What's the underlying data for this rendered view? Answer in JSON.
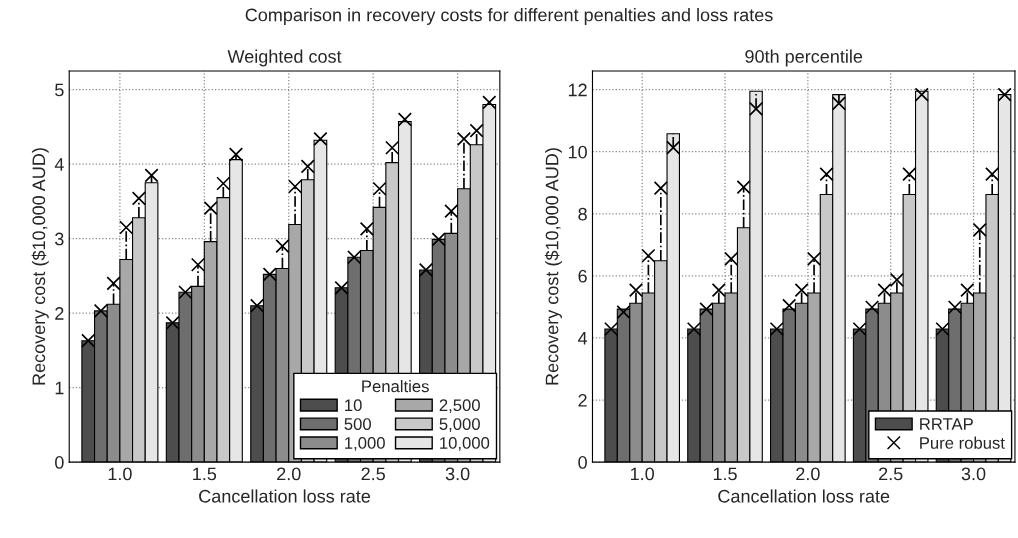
{
  "chart_data": [
    {
      "type": "bar",
      "title": "Weighted cost",
      "xlabel": "Cancellation loss rate",
      "ylabel": "Recovery cost ($10,000 AUD)",
      "annotations": [
        "Comparison in recovery costs for different penalties and loss rates"
      ],
      "x": [
        1.0,
        1.5,
        2.0,
        2.5,
        3.0
      ],
      "xlim": [
        0.7,
        3.25
      ],
      "xticks": [
        {
          "value": 1.0,
          "label": "1.0"
        },
        {
          "value": 1.5,
          "label": "1.5"
        },
        {
          "value": 2.0,
          "label": "2.0"
        },
        {
          "value": 2.5,
          "label": "2.5"
        },
        {
          "value": 3.0,
          "label": "3.0"
        }
      ],
      "ylim": [
        0,
        5.25
      ],
      "yticks": [
        0,
        1,
        2,
        3,
        4,
        5
      ],
      "grid": true,
      "legend": "bottom right",
      "legend_title": "Penalties",
      "series": [
        {
          "name": "10",
          "color": "#4d4d4d",
          "values": [
            1.63,
            1.87,
            2.1,
            2.34,
            2.58
          ]
        },
        {
          "name": "500",
          "color": "#6e6e6e",
          "values": [
            2.03,
            2.28,
            2.52,
            2.75,
            2.99
          ]
        },
        {
          "name": "1,000",
          "color": "#8c8c8c",
          "values": [
            2.12,
            2.36,
            2.6,
            2.84,
            3.07
          ]
        },
        {
          "name": "2,500",
          "color": "#a8a8a8",
          "values": [
            2.72,
            2.96,
            3.19,
            3.42,
            3.67
          ]
        },
        {
          "name": "5,000",
          "color": "#c8c8c8",
          "values": [
            3.28,
            3.55,
            3.79,
            4.02,
            4.26
          ]
        },
        {
          "name": "10,000",
          "color": "#e6e6e6",
          "values": [
            3.75,
            4.06,
            4.32,
            4.57,
            4.8
          ]
        },
        {
          "type": "scatter",
          "marker": "cross",
          "color": "#000000",
          "x": [
            0.8125,
            1.3125,
            1.8125,
            2.3125,
            2.8125
          ],
          "values": [
            1.63,
            1.87,
            2.1,
            2.34,
            2.58
          ]
        },
        {
          "type": "scatter",
          "marker": "cross",
          "color": "#000000",
          "x": [
            0.8875,
            1.3875,
            1.8875,
            2.3875,
            2.8875
          ],
          "values": [
            2.03,
            2.28,
            2.52,
            2.75,
            2.99
          ]
        },
        {
          "type": "scatter",
          "marker": "cross",
          "color": "#000000",
          "x": [
            0.9625,
            1.4625,
            1.9625,
            2.4625,
            2.9625
          ],
          "values": [
            2.4,
            2.65,
            2.9,
            3.13,
            3.37
          ],
          "errors": [
            [
              2.12,
              2.4
            ],
            [
              2.36,
              2.65
            ],
            [
              2.6,
              2.9
            ],
            [
              2.84,
              3.13
            ],
            [
              3.07,
              3.37
            ]
          ]
        },
        {
          "type": "scatter",
          "marker": "cross",
          "color": "#000000",
          "x": [
            1.0375,
            1.5375,
            2.0375,
            2.5375,
            3.0375
          ],
          "values": [
            3.15,
            3.41,
            3.7,
            3.67,
            4.34
          ],
          "errors": [
            [
              2.72,
              3.15
            ],
            [
              2.96,
              3.41
            ],
            [
              3.19,
              3.7
            ],
            [
              3.42,
              3.67
            ],
            [
              3.67,
              4.34
            ]
          ]
        },
        {
          "type": "scatter",
          "marker": "cross",
          "color": "#000000",
          "x": [
            1.1125,
            1.6125,
            2.1125,
            2.6125,
            3.1125
          ],
          "values": [
            3.54,
            3.74,
            3.97,
            4.22,
            4.45
          ],
          "errors": [
            [
              3.28,
              3.54
            ],
            [
              3.55,
              3.74
            ],
            [
              3.79,
              3.97
            ],
            [
              4.02,
              4.22
            ],
            [
              4.26,
              4.45
            ]
          ]
        },
        {
          "type": "scatter",
          "marker": "cross",
          "color": "#000000",
          "x": [
            1.1875,
            1.6875,
            2.1875,
            2.6875,
            3.1875
          ],
          "values": [
            3.85,
            4.13,
            4.34,
            4.6,
            4.83
          ],
          "errors": [
            [
              3.75,
              3.85
            ],
            [
              4.06,
              4.13
            ],
            null,
            null,
            null
          ]
        }
      ]
    },
    {
      "type": "bar",
      "title": "90th percentile",
      "xlabel": "Cancellation loss rate",
      "ylabel": "Recovery cost ($10,000 AUD)",
      "x": [
        1.0,
        1.5,
        2.0,
        2.5,
        3.0
      ],
      "xlim": [
        0.7,
        3.25
      ],
      "xticks": [
        {
          "value": 1.0,
          "label": "1.0"
        },
        {
          "value": 1.5,
          "label": "1.5"
        },
        {
          "value": 2.0,
          "label": "2.0"
        },
        {
          "value": 2.5,
          "label": "2.5"
        },
        {
          "value": 3.0,
          "label": "3.0"
        }
      ],
      "ylim": [
        0,
        12.6
      ],
      "yticks": [
        0,
        2,
        4,
        6,
        8,
        10,
        12
      ],
      "grid": true,
      "legend": "bottom right",
      "series": [
        {
          "name": "RRTAP",
          "color": "#4d4d4d",
          "values": [
            4.29,
            4.29,
            4.29,
            4.29,
            4.29
          ]
        },
        {
          "color": "#6e6e6e",
          "values": [
            4.93,
            4.93,
            4.93,
            4.93,
            4.93
          ]
        },
        {
          "color": "#8c8c8c",
          "values": [
            5.12,
            5.12,
            5.12,
            5.12,
            5.12
          ]
        },
        {
          "color": "#a8a8a8",
          "values": [
            5.45,
            5.45,
            5.45,
            5.45,
            5.45
          ]
        },
        {
          "color": "#c8c8c8",
          "values": [
            6.49,
            7.55,
            8.62,
            8.62,
            8.62
          ]
        },
        {
          "color": "#e6e6e6",
          "values": [
            10.58,
            11.95,
            11.84,
            11.95,
            11.84
          ]
        },
        {
          "type": "scatter",
          "name": "Pure robust",
          "marker": "cross",
          "color": "#000000",
          "x": [
            0.8125,
            1.3125,
            1.8125,
            2.3125,
            2.8125
          ],
          "values": [
            4.29,
            4.29,
            4.29,
            4.29,
            4.29
          ]
        },
        {
          "type": "scatter",
          "marker": "cross",
          "color": "#000000",
          "x": [
            0.8875,
            1.3875,
            1.8875,
            2.3875,
            2.8875
          ],
          "values": [
            4.83,
            4.93,
            5.04,
            4.99,
            4.99
          ]
        },
        {
          "type": "scatter",
          "marker": "cross",
          "color": "#000000",
          "x": [
            0.9625,
            1.4625,
            1.9625,
            2.4625,
            2.9625
          ],
          "values": [
            5.54,
            5.54,
            5.54,
            5.54,
            5.54
          ],
          "errors": [
            [
              5.12,
              5.54
            ],
            [
              5.12,
              5.54
            ],
            [
              5.12,
              5.54
            ],
            [
              5.12,
              5.54
            ],
            [
              5.12,
              5.54
            ]
          ]
        },
        {
          "type": "scatter",
          "marker": "cross",
          "color": "#000000",
          "x": [
            1.0375,
            1.5375,
            2.0375,
            2.5375,
            3.0375
          ],
          "values": [
            6.65,
            6.55,
            6.55,
            5.87,
            7.48
          ],
          "errors": [
            [
              5.45,
              6.65
            ],
            [
              5.45,
              6.55
            ],
            [
              5.45,
              6.55
            ],
            [
              5.45,
              5.87
            ],
            [
              5.45,
              7.48
            ]
          ]
        },
        {
          "type": "scatter",
          "marker": "cross",
          "color": "#000000",
          "x": [
            1.1125,
            1.6125,
            2.1125,
            2.6125,
            3.1125
          ],
          "values": [
            8.83,
            8.86,
            9.28,
            9.28,
            9.28
          ],
          "errors": [
            [
              6.49,
              8.83
            ],
            [
              7.55,
              8.86
            ],
            [
              8.62,
              9.28
            ],
            [
              8.62,
              9.28
            ],
            [
              8.62,
              9.28
            ]
          ]
        },
        {
          "type": "scatter",
          "marker": "cross",
          "color": "#000000",
          "x": [
            1.1875,
            1.6875,
            2.1875,
            2.6875,
            3.1875
          ],
          "values": [
            10.13,
            11.38,
            11.56,
            11.84,
            11.84
          ],
          "errors": [
            [
              10.13,
              10.58
            ],
            [
              11.38,
              11.95
            ],
            [
              11.56,
              11.84
            ],
            null,
            null
          ]
        }
      ]
    }
  ]
}
